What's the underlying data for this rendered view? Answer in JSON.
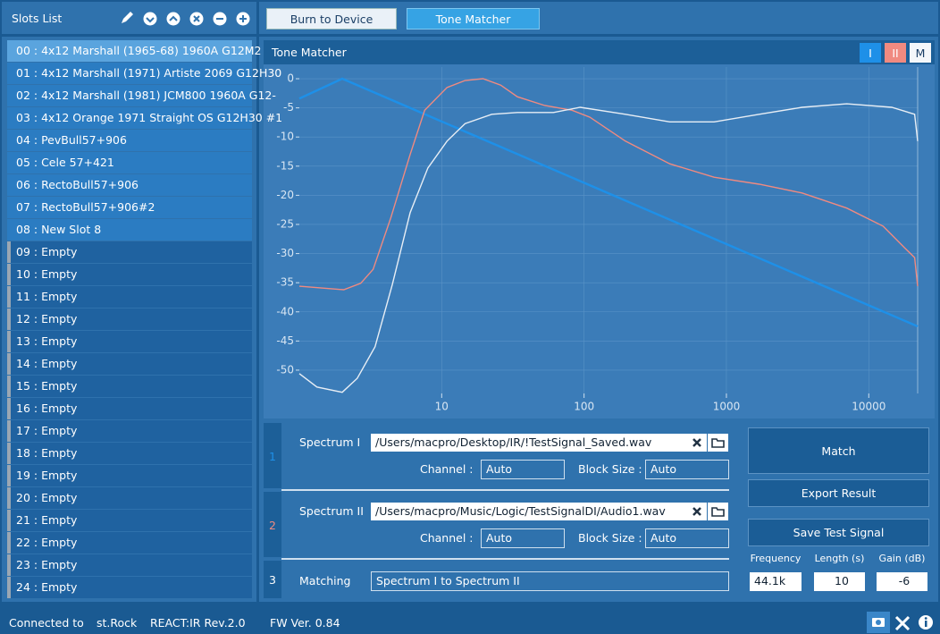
{
  "sidebar": {
    "title": "Slots List",
    "selected": 0,
    "slots": [
      {
        "text": "00 : 4x12 Marshall (1965-68) 1960A G12M2",
        "used": true
      },
      {
        "text": "01 : 4x12 Marshall (1971) Artiste 2069 G12H30",
        "used": true
      },
      {
        "text": "02 : 4x12 Marshall (1981) JCM800 1960A G12-",
        "used": true
      },
      {
        "text": "03 : 4x12 Orange 1971 Straight OS G12H30 #1",
        "used": true
      },
      {
        "text": "04 : PevBull57+906",
        "used": true
      },
      {
        "text": "05 : Cele 57+421",
        "used": true
      },
      {
        "text": "06 : RectoBull57+906",
        "used": true
      },
      {
        "text": "07 : RectoBull57+906#2",
        "used": true
      },
      {
        "text": "08 : New Slot 8",
        "used": true
      },
      {
        "text": "09 : Empty",
        "used": false
      },
      {
        "text": "10 : Empty",
        "used": false
      },
      {
        "text": "11 : Empty",
        "used": false
      },
      {
        "text": "12 : Empty",
        "used": false
      },
      {
        "text": "13 : Empty",
        "used": false
      },
      {
        "text": "14 : Empty",
        "used": false
      },
      {
        "text": "15 : Empty",
        "used": false
      },
      {
        "text": "16 : Empty",
        "used": false
      },
      {
        "text": "17 : Empty",
        "used": false
      },
      {
        "text": "18 : Empty",
        "used": false
      },
      {
        "text": "19 : Empty",
        "used": false
      },
      {
        "text": "20 : Empty",
        "used": false
      },
      {
        "text": "21 : Empty",
        "used": false
      },
      {
        "text": "22 : Empty",
        "used": false
      },
      {
        "text": "23 : Empty",
        "used": false
      },
      {
        "text": "24 : Empty",
        "used": false
      }
    ]
  },
  "toolbar": {
    "buttons": [
      "Burn to Device",
      "Tone Matcher"
    ],
    "active": 1
  },
  "tone_matcher": {
    "title": "Tone Matcher",
    "chart_data": {
      "type": "line",
      "log_x": true,
      "grid": true,
      "xlim": [
        1,
        22050
      ],
      "xticks": [
        10,
        100,
        1000,
        10000
      ],
      "ylim": [
        -54,
        2
      ],
      "yticks": [
        0,
        -5,
        -10,
        -15,
        -20,
        -25,
        -30,
        -35,
        -40,
        -45,
        -50
      ],
      "series": [
        {
          "name": "I",
          "color": "#1e90e8",
          "x": [
            1,
            2,
            22050
          ],
          "values": [
            -3.4,
            0,
            -42.5
          ]
        },
        {
          "name": "II",
          "color": "#f08a80",
          "x": [
            1,
            2.05,
            2.7,
            3.3,
            4.4,
            6,
            7.6,
            10.9,
            14.6,
            19.5,
            26,
            34,
            53,
            82,
            110,
            195,
            400,
            820,
            1700,
            3400,
            7000,
            12600,
            18000,
            21000,
            22050
          ],
          "values": [
            -35.6,
            -36.2,
            -35.1,
            -32.7,
            -23.8,
            -13,
            -5.4,
            -1.5,
            -0.3,
            0,
            -1.1,
            -3.1,
            -4.6,
            -5.4,
            -6.6,
            -10.7,
            -14.6,
            -16.9,
            -18.1,
            -19.6,
            -22.2,
            -25.3,
            -29.1,
            -30.7,
            -35.6
          ]
        },
        {
          "name": "M",
          "color": "#e8eef5",
          "x": [
            1,
            1.33,
            2,
            2.55,
            3.4,
            4.5,
            6,
            8,
            10.9,
            14.6,
            22.5,
            34,
            61,
            94,
            195,
            400,
            820,
            1700,
            3400,
            7000,
            14500,
            21000,
            22050
          ],
          "values": [
            -50.6,
            -52.9,
            -53.8,
            -51.4,
            -46,
            -35.3,
            -23,
            -15.3,
            -10.7,
            -7.7,
            -6.1,
            -5.8,
            -5.8,
            -4.9,
            -6.1,
            -7.4,
            -7.4,
            -6.1,
            -4.9,
            -4.3,
            -4.9,
            -6.1,
            -10.7
          ]
        }
      ]
    },
    "spectra": [
      {
        "index": 1,
        "label": "Spectrum I",
        "path": "/Users/macpro/Desktop/IR/!TestSignal_Saved.wav",
        "channel_label": "Channel :",
        "channel": "Auto",
        "block_label": "Block Size :",
        "block": "Auto"
      },
      {
        "index": 2,
        "label": "Spectrum II",
        "path": "/Users/macpro/Music/Logic/TestSignalDI/Audio1.wav",
        "channel_label": "Channel :",
        "channel": "Auto",
        "block_label": "Block Size :",
        "block": "Auto"
      }
    ],
    "matching": {
      "index": 3,
      "label": "Matching",
      "value": "Spectrum I to Spectrum II"
    },
    "actions": [
      "Match",
      "Export Result",
      "Save Test Signal"
    ],
    "settings": [
      {
        "label": "Frequency",
        "value": "44.1k"
      },
      {
        "label": "Length (s)",
        "value": "10"
      },
      {
        "label": "Gain (dB)",
        "value": "-6"
      }
    ]
  },
  "status": {
    "connected_label": "Connected to",
    "device": "st.Rock",
    "model": "REACT:IR Rev.2.0",
    "firmware": "FW Ver. 0.84"
  }
}
